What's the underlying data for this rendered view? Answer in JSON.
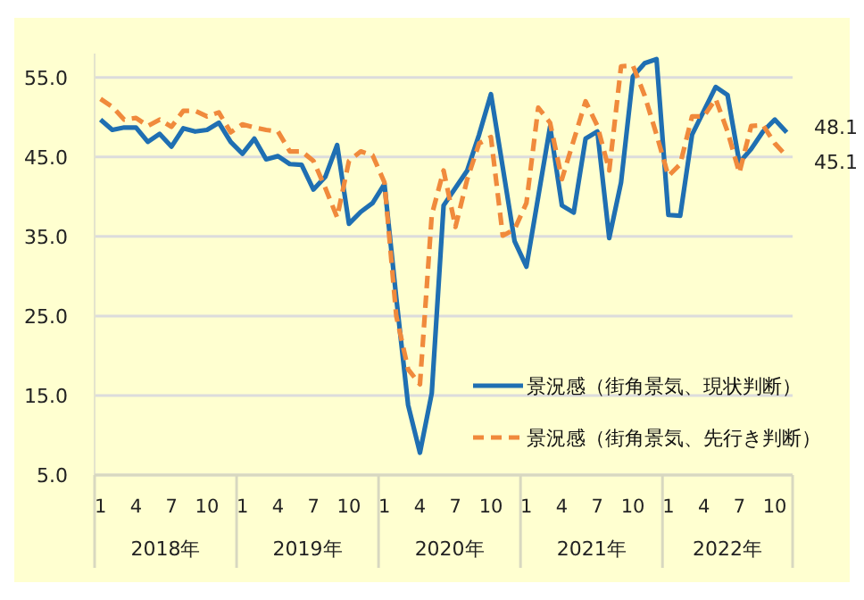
{
  "chart_data": {
    "type": "line",
    "categories": [
      "1",
      null,
      null,
      "4",
      null,
      null,
      "7",
      null,
      null,
      "10",
      null,
      null,
      "1",
      null,
      null,
      "4",
      null,
      null,
      "7",
      null,
      null,
      "10",
      null,
      null,
      "1",
      null,
      null,
      "4",
      null,
      null,
      "7",
      null,
      null,
      "10",
      null,
      null,
      "1",
      null,
      null,
      "4",
      null,
      null,
      "7",
      null,
      null,
      "10",
      null,
      null,
      "1",
      null,
      null,
      "4",
      null,
      null,
      "7",
      null,
      null,
      "10",
      null
    ],
    "series": [
      {
        "name": "景況感（街角景気、現状判断）",
        "color": "#1f6fb2",
        "line_style": "solid",
        "values": [
          49.7,
          48.4,
          48.7,
          48.7,
          46.9,
          47.9,
          46.3,
          48.6,
          48.2,
          48.4,
          49.3,
          46.9,
          45.4,
          47.3,
          44.7,
          45.1,
          44.1,
          44.0,
          40.9,
          42.5,
          46.5,
          36.6,
          38.1,
          39.2,
          41.6,
          27.3,
          13.8,
          7.8,
          15.3,
          38.9,
          41.1,
          43.3,
          47.8,
          52.9,
          43.7,
          34.4,
          31.2,
          40.0,
          48.8,
          38.9,
          38.0,
          47.3,
          48.2,
          34.8,
          41.8,
          55.1,
          56.8,
          57.3,
          37.7,
          37.6,
          47.8,
          50.8,
          53.8,
          52.8,
          44.3,
          46.0,
          48.2,
          49.7,
          48.1
        ]
      },
      {
        "name": "景況感（街角景気、先行き判断）",
        "color": "#f08a3c",
        "line_style": "dashed",
        "values": [
          52.3,
          51.3,
          49.7,
          49.9,
          48.9,
          49.7,
          48.8,
          50.8,
          50.8,
          50.1,
          50.6,
          48.1,
          49.1,
          48.7,
          48.4,
          48.2,
          45.7,
          45.7,
          44.5,
          41.1,
          37.4,
          44.5,
          45.7,
          45.2,
          41.8,
          25.0,
          18.3,
          16.4,
          37.7,
          43.3,
          36.2,
          42.2,
          46.7,
          47.5,
          35.1,
          35.9,
          39.2,
          51.2,
          49.3,
          42.2,
          47.1,
          52.0,
          48.9,
          43.3,
          56.4,
          56.5,
          52.7,
          47.8,
          42.6,
          44.1,
          50.1,
          50.1,
          52.3,
          48.2,
          43.0,
          48.9,
          49.0,
          46.7,
          45.1
        ]
      }
    ],
    "ylim": [
      5,
      58
    ],
    "yticks": [
      {
        "value": 5,
        "label": "5.0"
      },
      {
        "value": 15,
        "label": "15.0"
      },
      {
        "value": 25,
        "label": "25.0"
      },
      {
        "value": 35,
        "label": "35.0"
      },
      {
        "value": 45,
        "label": "45.0"
      },
      {
        "value": 55,
        "label": "55.0"
      }
    ],
    "grid": "y",
    "legend": "bottom right",
    "marker": "none",
    "annotations": [
      "2018年",
      "2019年",
      "2020年",
      "2021年",
      "2022年",
      "48.1",
      "45.1"
    ]
  }
}
